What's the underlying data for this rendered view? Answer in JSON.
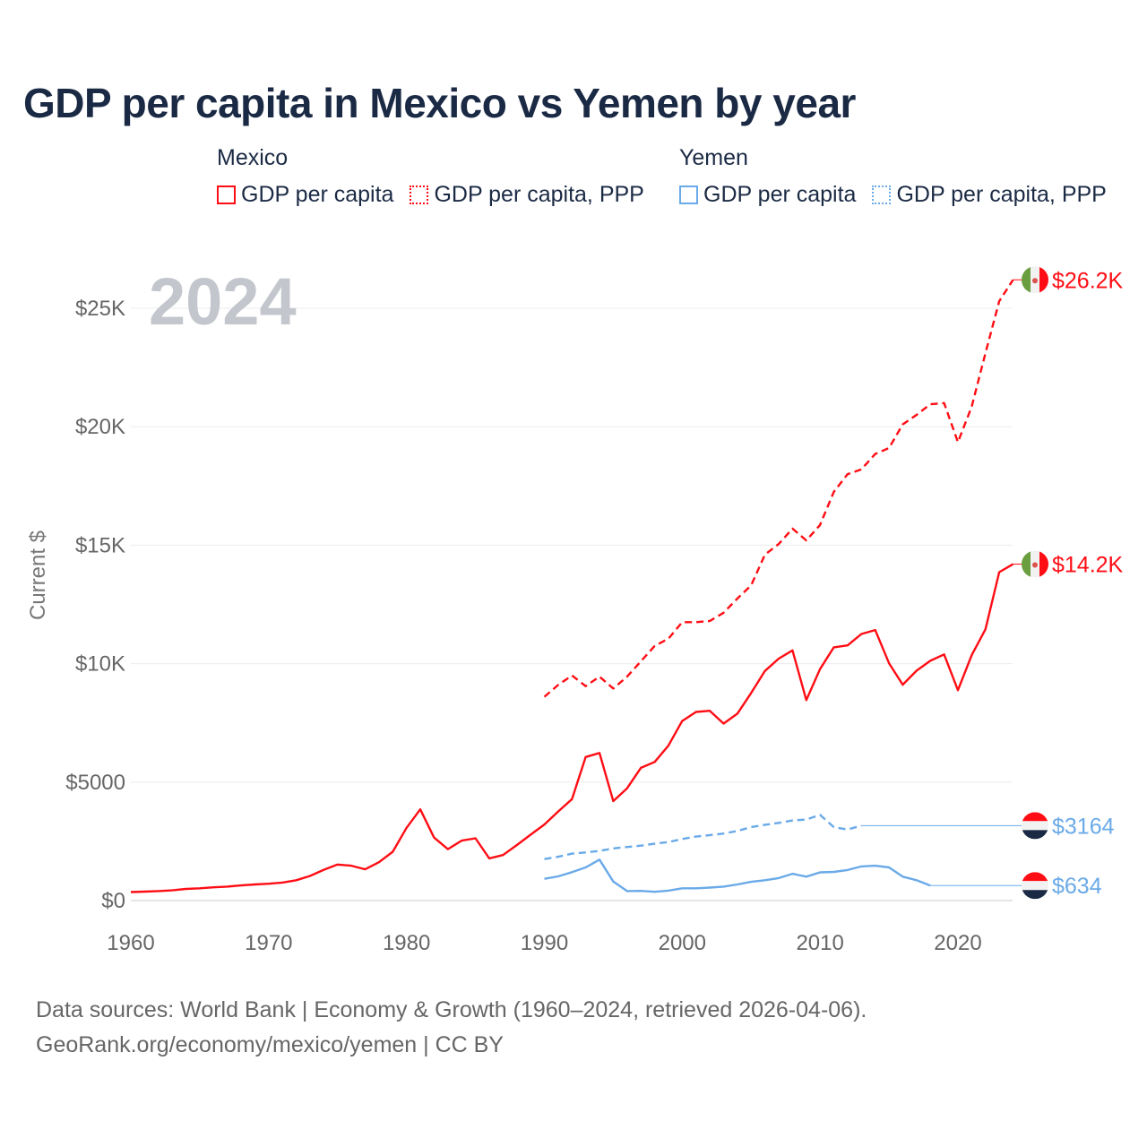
{
  "chart_data": {
    "type": "line",
    "title": "GDP per capita in Mexico vs Yemen by year",
    "ylabel": "Current $",
    "xlabel": "",
    "year_watermark": "2024",
    "xlim": [
      1960,
      2024
    ],
    "ylim": [
      0,
      27000
    ],
    "x_ticks": [
      1960,
      1970,
      1980,
      1990,
      2000,
      2010,
      2020
    ],
    "x_tick_labels": [
      "1960",
      "1970",
      "1980",
      "1990",
      "2000",
      "2010",
      "2020"
    ],
    "y_ticks": [
      0,
      5000,
      10000,
      15000,
      20000,
      25000
    ],
    "y_tick_labels": [
      "$0",
      "$5000",
      "$10K",
      "$15K",
      "$20K",
      "$25K"
    ],
    "grid": true,
    "legend": {
      "placement": "top",
      "groups": [
        {
          "name": "Mexico",
          "items": [
            "GDP per capita",
            "GDP per capita, PPP"
          ]
        },
        {
          "name": "Yemen",
          "items": [
            "GDP per capita",
            "GDP per capita, PPP"
          ]
        }
      ]
    },
    "colors": {
      "mexico": "#ff0d14",
      "yemen": "#6aaae8"
    },
    "series": [
      {
        "name": "Mexico GDP per capita",
        "country": "mexico",
        "dashed": false,
        "start_year": 1960,
        "values": [
          360,
          380,
          400,
          430,
          490,
          520,
          560,
          590,
          640,
          680,
          710,
          760,
          860,
          1040,
          1300,
          1520,
          1470,
          1320,
          1620,
          2060,
          3070,
          3850,
          2660,
          2170,
          2530,
          2630,
          1780,
          1920,
          2340,
          2780,
          3210,
          3760,
          4280,
          6060,
          6230,
          4200,
          4740,
          5600,
          5850,
          6540,
          7580,
          7960,
          8010,
          7470,
          7890,
          8760,
          9690,
          10210,
          10560,
          8460,
          9770,
          10690,
          10770,
          11250,
          11420,
          10020,
          9110,
          9700,
          10120,
          10390,
          8880,
          10360,
          11450,
          13860,
          14200
        ],
        "end_label": "$14.2K"
      },
      {
        "name": "Mexico GDP per capita, PPP",
        "country": "mexico",
        "dashed": true,
        "start_year": 1990,
        "values": [
          8600,
          9100,
          9500,
          9050,
          9450,
          8950,
          9450,
          10100,
          10750,
          11050,
          11750,
          11750,
          11800,
          12150,
          12750,
          13300,
          14600,
          15050,
          15700,
          15200,
          15850,
          17250,
          18000,
          18200,
          18850,
          19100,
          20100,
          20500,
          20950,
          21000,
          19350,
          20850,
          23100,
          25300,
          26200
        ],
        "end_label": "$26.2K"
      },
      {
        "name": "Yemen GDP per capita",
        "country": "yemen",
        "dashed": false,
        "start_year": 1990,
        "values": [
          920,
          1020,
          1200,
          1400,
          1730,
          800,
          400,
          410,
          370,
          420,
          520,
          520,
          550,
          590,
          680,
          790,
          860,
          950,
          1130,
          1010,
          1190,
          1210,
          1290,
          1440,
          1470,
          1400,
          1010,
          860,
          634
        ],
        "end_label": "$634"
      },
      {
        "name": "Yemen GDP per capita, PPP",
        "country": "yemen",
        "dashed": true,
        "start_year": 1990,
        "values": [
          1750,
          1850,
          1980,
          2030,
          2100,
          2200,
          2260,
          2320,
          2400,
          2470,
          2600,
          2700,
          2760,
          2830,
          2940,
          3100,
          3200,
          3280,
          3380,
          3420,
          3620,
          3100,
          3000,
          3164
        ],
        "end_label": "$3164"
      }
    ]
  },
  "footer": {
    "line1": "Data sources: World Bank | Economy & Growth (1960–2024, retrieved 2026-04-06).",
    "line2": "GeoRank.org/economy/mexico/yemen | CC BY"
  }
}
